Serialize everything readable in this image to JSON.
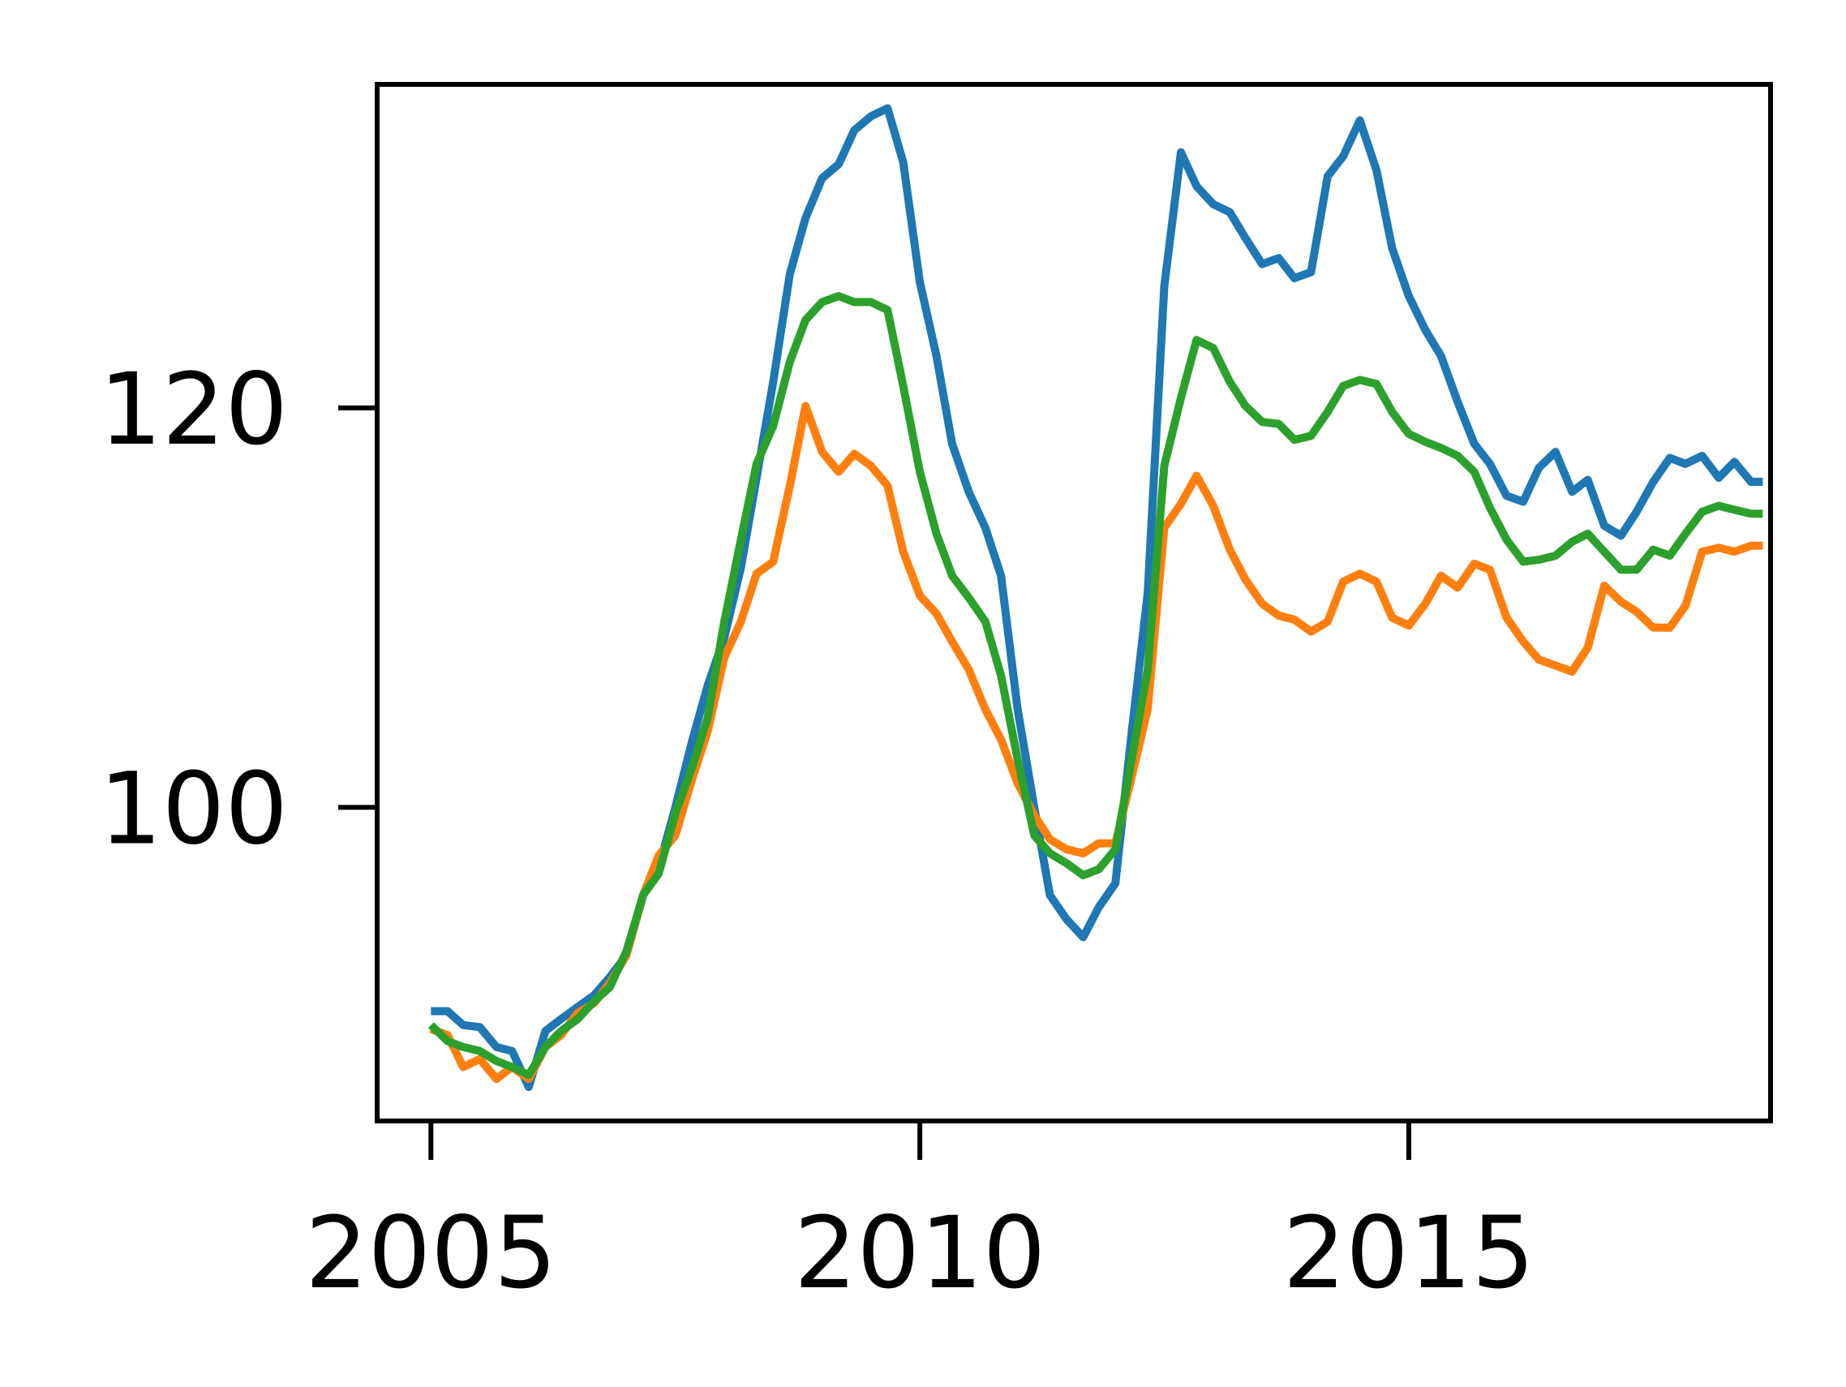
{
  "chart_data": {
    "type": "line",
    "title": "",
    "xlabel": "",
    "ylabel": "",
    "xlim": [
      2004.45,
      2018.7
    ],
    "ylim": [
      84.3,
      136.2
    ],
    "x_ticks": [
      2005,
      2010,
      2015
    ],
    "x_tick_labels": [
      "2005",
      "2010",
      "2015"
    ],
    "y_ticks": [
      100,
      120
    ],
    "y_tick_labels": [
      "100",
      "120"
    ],
    "grid": false,
    "legend": "none",
    "series": [
      {
        "color": "#1f77b4",
        "points": [
          [
            2005.0,
            89.8
          ],
          [
            2005.17,
            89.8
          ],
          [
            2005.33,
            89.1
          ],
          [
            2005.5,
            89.0
          ],
          [
            2005.67,
            88.0
          ],
          [
            2005.83,
            87.8
          ],
          [
            2006.0,
            86.0
          ],
          [
            2006.17,
            88.8
          ],
          [
            2006.33,
            89.4
          ],
          [
            2006.5,
            90.0
          ],
          [
            2006.67,
            90.6
          ],
          [
            2006.83,
            91.5
          ],
          [
            2007.0,
            92.6
          ],
          [
            2007.17,
            95.6
          ],
          [
            2007.33,
            97.0
          ],
          [
            2007.5,
            100.0
          ],
          [
            2007.67,
            103.3
          ],
          [
            2007.83,
            106.1
          ],
          [
            2008.0,
            108.5
          ],
          [
            2008.17,
            112.0
          ],
          [
            2008.33,
            116.5
          ],
          [
            2008.5,
            121.3
          ],
          [
            2008.67,
            126.7
          ],
          [
            2008.83,
            129.5
          ],
          [
            2009.0,
            131.5
          ],
          [
            2009.17,
            132.2
          ],
          [
            2009.33,
            133.9
          ],
          [
            2009.5,
            134.6
          ],
          [
            2009.67,
            135.0
          ],
          [
            2009.83,
            132.3
          ],
          [
            2010.0,
            126.3
          ],
          [
            2010.17,
            122.6
          ],
          [
            2010.33,
            118.2
          ],
          [
            2010.5,
            115.8
          ],
          [
            2010.67,
            114.0
          ],
          [
            2010.83,
            111.6
          ],
          [
            2011.0,
            104.9
          ],
          [
            2011.17,
            100.0
          ],
          [
            2011.33,
            95.6
          ],
          [
            2011.5,
            94.4
          ],
          [
            2011.67,
            93.5
          ],
          [
            2011.83,
            95.0
          ],
          [
            2012.0,
            96.2
          ],
          [
            2012.17,
            103.9
          ],
          [
            2012.33,
            110.7
          ],
          [
            2012.5,
            126.1
          ],
          [
            2012.67,
            132.8
          ],
          [
            2012.83,
            131.1
          ],
          [
            2013.0,
            130.2
          ],
          [
            2013.17,
            129.8
          ],
          [
            2013.33,
            128.5
          ],
          [
            2013.5,
            127.2
          ],
          [
            2013.67,
            127.5
          ],
          [
            2013.83,
            126.5
          ],
          [
            2014.0,
            126.8
          ],
          [
            2014.17,
            131.6
          ],
          [
            2014.33,
            132.6
          ],
          [
            2014.5,
            134.4
          ],
          [
            2014.67,
            131.9
          ],
          [
            2014.83,
            128.0
          ],
          [
            2015.0,
            125.6
          ],
          [
            2015.17,
            123.9
          ],
          [
            2015.33,
            122.6
          ],
          [
            2015.5,
            120.3
          ],
          [
            2015.67,
            118.2
          ],
          [
            2015.83,
            117.2
          ],
          [
            2016.0,
            115.6
          ],
          [
            2016.17,
            115.3
          ],
          [
            2016.33,
            117.0
          ],
          [
            2016.5,
            117.8
          ],
          [
            2016.67,
            115.8
          ],
          [
            2016.83,
            116.4
          ],
          [
            2017.0,
            114.1
          ],
          [
            2017.17,
            113.6
          ],
          [
            2017.33,
            114.8
          ],
          [
            2017.5,
            116.3
          ],
          [
            2017.67,
            117.5
          ],
          [
            2017.83,
            117.2
          ],
          [
            2018.0,
            117.6
          ],
          [
            2018.17,
            116.5
          ],
          [
            2018.33,
            117.3
          ],
          [
            2018.5,
            116.3
          ],
          [
            2018.62,
            116.3
          ]
        ]
      },
      {
        "color": "#ff7f0e",
        "points": [
          [
            2005.0,
            88.9
          ],
          [
            2005.17,
            88.6
          ],
          [
            2005.33,
            87.0
          ],
          [
            2005.5,
            87.4
          ],
          [
            2005.67,
            86.4
          ],
          [
            2005.83,
            87.0
          ],
          [
            2006.0,
            86.4
          ],
          [
            2006.17,
            88.0
          ],
          [
            2006.33,
            88.6
          ],
          [
            2006.5,
            89.7
          ],
          [
            2006.67,
            90.2
          ],
          [
            2006.83,
            91.2
          ],
          [
            2007.0,
            92.6
          ],
          [
            2007.17,
            95.6
          ],
          [
            2007.33,
            97.6
          ],
          [
            2007.5,
            98.6
          ],
          [
            2007.67,
            101.4
          ],
          [
            2007.83,
            103.8
          ],
          [
            2008.0,
            107.5
          ],
          [
            2008.17,
            109.3
          ],
          [
            2008.33,
            111.7
          ],
          [
            2008.5,
            112.3
          ],
          [
            2008.67,
            116.1
          ],
          [
            2008.83,
            120.1
          ],
          [
            2009.0,
            117.8
          ],
          [
            2009.17,
            116.8
          ],
          [
            2009.33,
            117.7
          ],
          [
            2009.5,
            117.1
          ],
          [
            2009.67,
            116.1
          ],
          [
            2009.83,
            112.8
          ],
          [
            2010.0,
            110.6
          ],
          [
            2010.17,
            109.7
          ],
          [
            2010.33,
            108.3
          ],
          [
            2010.5,
            106.9
          ],
          [
            2010.67,
            104.9
          ],
          [
            2010.83,
            103.4
          ],
          [
            2011.0,
            101.2
          ],
          [
            2011.17,
            99.6
          ],
          [
            2011.33,
            98.4
          ],
          [
            2011.5,
            97.9
          ],
          [
            2011.67,
            97.7
          ],
          [
            2011.83,
            98.2
          ],
          [
            2012.0,
            98.2
          ],
          [
            2012.17,
            101.6
          ],
          [
            2012.33,
            104.9
          ],
          [
            2012.5,
            114.0
          ],
          [
            2012.67,
            115.2
          ],
          [
            2012.83,
            116.6
          ],
          [
            2013.0,
            115.1
          ],
          [
            2013.17,
            112.9
          ],
          [
            2013.33,
            111.4
          ],
          [
            2013.5,
            110.2
          ],
          [
            2013.67,
            109.6
          ],
          [
            2013.83,
            109.4
          ],
          [
            2014.0,
            108.8
          ],
          [
            2014.17,
            109.3
          ],
          [
            2014.33,
            111.3
          ],
          [
            2014.5,
            111.7
          ],
          [
            2014.67,
            111.3
          ],
          [
            2014.83,
            109.5
          ],
          [
            2015.0,
            109.1
          ],
          [
            2015.17,
            110.2
          ],
          [
            2015.33,
            111.6
          ],
          [
            2015.5,
            111.0
          ],
          [
            2015.67,
            112.2
          ],
          [
            2015.83,
            111.9
          ],
          [
            2016.0,
            109.5
          ],
          [
            2016.17,
            108.3
          ],
          [
            2016.33,
            107.4
          ],
          [
            2016.5,
            107.1
          ],
          [
            2016.67,
            106.8
          ],
          [
            2016.83,
            108.0
          ],
          [
            2017.0,
            111.1
          ],
          [
            2017.17,
            110.3
          ],
          [
            2017.33,
            109.8
          ],
          [
            2017.5,
            109.0
          ],
          [
            2017.67,
            109.0
          ],
          [
            2017.83,
            110.1
          ],
          [
            2018.0,
            112.8
          ],
          [
            2018.17,
            113.0
          ],
          [
            2018.33,
            112.8
          ],
          [
            2018.5,
            113.1
          ],
          [
            2018.62,
            113.1
          ]
        ]
      },
      {
        "color": "#2ca02c",
        "points": [
          [
            2005.0,
            89.1
          ],
          [
            2005.17,
            88.3
          ],
          [
            2005.33,
            88.0
          ],
          [
            2005.5,
            87.8
          ],
          [
            2005.67,
            87.3
          ],
          [
            2005.83,
            87.0
          ],
          [
            2006.0,
            86.6
          ],
          [
            2006.17,
            88.0
          ],
          [
            2006.33,
            88.8
          ],
          [
            2006.5,
            89.4
          ],
          [
            2006.67,
            90.3
          ],
          [
            2006.83,
            91.0
          ],
          [
            2007.0,
            92.8
          ],
          [
            2007.17,
            95.6
          ],
          [
            2007.33,
            96.7
          ],
          [
            2007.5,
            99.7
          ],
          [
            2007.67,
            102.0
          ],
          [
            2007.83,
            104.5
          ],
          [
            2008.0,
            109.3
          ],
          [
            2008.17,
            113.4
          ],
          [
            2008.33,
            117.2
          ],
          [
            2008.5,
            119.1
          ],
          [
            2008.67,
            122.3
          ],
          [
            2008.83,
            124.4
          ],
          [
            2009.0,
            125.3
          ],
          [
            2009.17,
            125.6
          ],
          [
            2009.33,
            125.3
          ],
          [
            2009.5,
            125.3
          ],
          [
            2009.67,
            124.9
          ],
          [
            2009.83,
            121.1
          ],
          [
            2010.0,
            116.8
          ],
          [
            2010.17,
            113.7
          ],
          [
            2010.33,
            111.6
          ],
          [
            2010.5,
            110.5
          ],
          [
            2010.67,
            109.3
          ],
          [
            2010.83,
            106.6
          ],
          [
            2011.0,
            102.4
          ],
          [
            2011.17,
            98.6
          ],
          [
            2011.33,
            97.7
          ],
          [
            2011.5,
            97.2
          ],
          [
            2011.67,
            96.6
          ],
          [
            2011.83,
            96.9
          ],
          [
            2012.0,
            97.9
          ],
          [
            2012.17,
            102.5
          ],
          [
            2012.33,
            106.9
          ],
          [
            2012.5,
            117.1
          ],
          [
            2012.67,
            120.5
          ],
          [
            2012.83,
            123.4
          ],
          [
            2013.0,
            123.0
          ],
          [
            2013.17,
            121.3
          ],
          [
            2013.33,
            120.1
          ],
          [
            2013.5,
            119.3
          ],
          [
            2013.67,
            119.2
          ],
          [
            2013.83,
            118.4
          ],
          [
            2014.0,
            118.6
          ],
          [
            2014.17,
            119.8
          ],
          [
            2014.33,
            121.1
          ],
          [
            2014.5,
            121.4
          ],
          [
            2014.67,
            121.2
          ],
          [
            2014.83,
            119.8
          ],
          [
            2015.0,
            118.7
          ],
          [
            2015.17,
            118.3
          ],
          [
            2015.33,
            118.0
          ],
          [
            2015.5,
            117.6
          ],
          [
            2015.67,
            116.8
          ],
          [
            2015.83,
            115.0
          ],
          [
            2016.0,
            113.4
          ],
          [
            2016.17,
            112.3
          ],
          [
            2016.33,
            112.4
          ],
          [
            2016.5,
            112.6
          ],
          [
            2016.67,
            113.3
          ],
          [
            2016.83,
            113.7
          ],
          [
            2017.0,
            112.8
          ],
          [
            2017.17,
            111.9
          ],
          [
            2017.33,
            111.9
          ],
          [
            2017.5,
            112.9
          ],
          [
            2017.67,
            112.6
          ],
          [
            2017.83,
            113.7
          ],
          [
            2018.0,
            114.8
          ],
          [
            2018.17,
            115.1
          ],
          [
            2018.33,
            114.9
          ],
          [
            2018.5,
            114.7
          ],
          [
            2018.62,
            114.7
          ]
        ]
      }
    ]
  }
}
